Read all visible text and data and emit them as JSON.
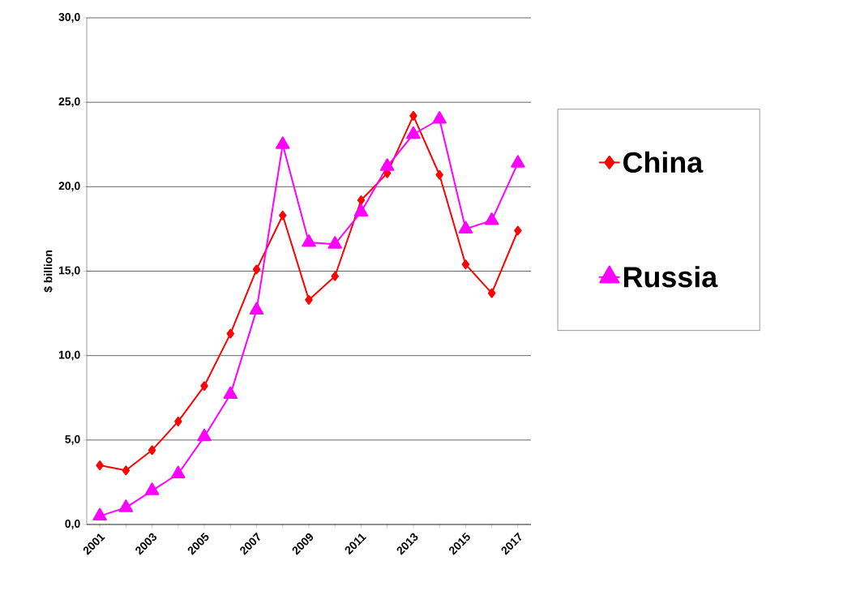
{
  "chart_data": {
    "type": "line",
    "ylabel": "$ billion",
    "categories": [
      "2001",
      null,
      "2003",
      null,
      "2005",
      null,
      "2007",
      null,
      "2009",
      null,
      "2011",
      null,
      "2013",
      null,
      "2015",
      null,
      "2017"
    ],
    "series": [
      {
        "name": "China",
        "color": "#ff0000",
        "marker": "diamond",
        "values": [
          3.5,
          3.2,
          4.4,
          6.1,
          8.2,
          11.3,
          15.1,
          18.3,
          13.3,
          14.7,
          19.2,
          20.8,
          24.2,
          20.7,
          15.4,
          13.7,
          17.4
        ]
      },
      {
        "name": "Russia",
        "color": "#ff00ff",
        "marker": "triangle",
        "values": [
          0.5,
          1.0,
          2.0,
          3.0,
          5.2,
          7.7,
          12.7,
          22.5,
          16.7,
          16.6,
          18.5,
          21.2,
          23.1,
          24.0,
          17.5,
          18.0,
          21.4
        ]
      }
    ],
    "ylim": [
      0,
      30
    ],
    "yticks": [
      {
        "value": 0,
        "label": "0,0"
      },
      {
        "value": 5,
        "label": "5,0"
      },
      {
        "value": 10,
        "label": "10,0"
      },
      {
        "value": 15,
        "label": "15,0"
      },
      {
        "value": 20,
        "label": "20,0"
      },
      {
        "value": 25,
        "label": "25,0"
      },
      {
        "value": 30,
        "label": "30,0"
      }
    ],
    "grid": "y",
    "legend": "right"
  }
}
